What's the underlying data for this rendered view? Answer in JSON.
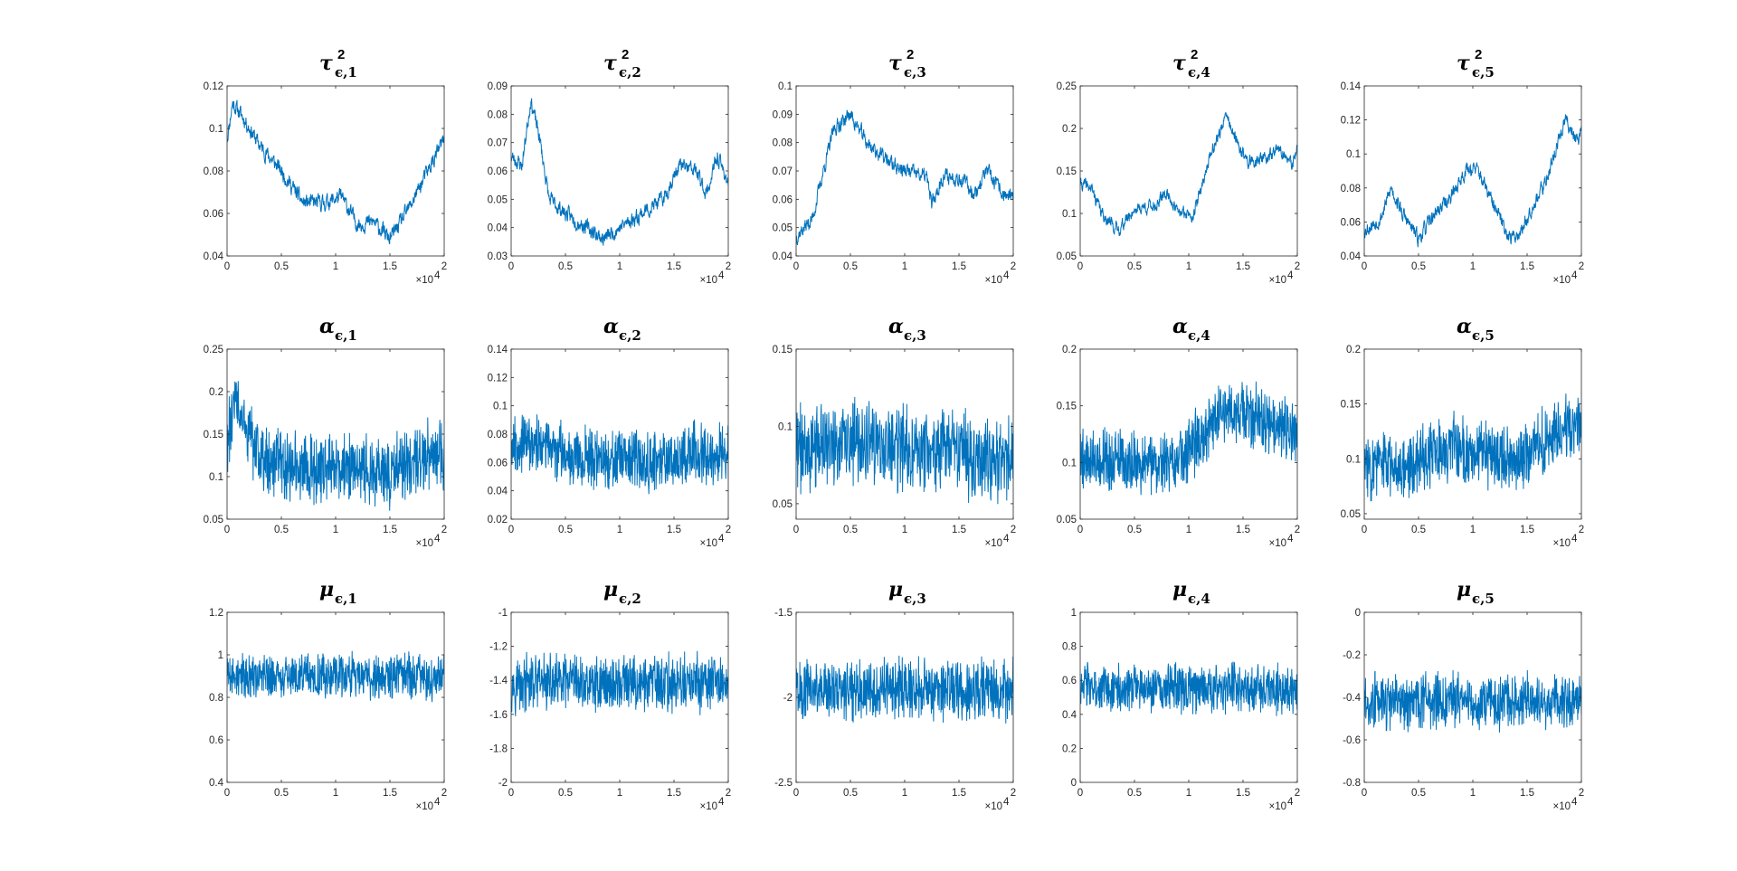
{
  "colors": {
    "trace": "#0072BD",
    "axis": "#262626",
    "background": "#ffffff"
  },
  "chart_data": [
    {
      "type": "line",
      "title": "τ²ϵ,1",
      "title_symbol": "τ",
      "title_subscript": "ϵ,1",
      "title_superscript": "2",
      "xlim": [
        0,
        20000
      ],
      "ylim": [
        0.04,
        0.12
      ],
      "xtick_labels": [
        "0",
        "0.5",
        "1",
        "1.5",
        "2"
      ],
      "x_exponent_label": "×10",
      "x_exponent": "4",
      "ytick_values": [
        0.04,
        0.06,
        0.08,
        0.1,
        0.12
      ],
      "ytick_labels": [
        "0.04",
        "0.06",
        "0.08",
        "0.1",
        "0.12"
      ],
      "knots": [
        [
          0,
          0.095
        ],
        [
          500,
          0.112
        ],
        [
          1500,
          0.105
        ],
        [
          3000,
          0.092
        ],
        [
          5000,
          0.08
        ],
        [
          7000,
          0.065
        ],
        [
          9000,
          0.065
        ],
        [
          10500,
          0.068
        ],
        [
          12000,
          0.055
        ],
        [
          13500,
          0.056
        ],
        [
          15000,
          0.048
        ],
        [
          16500,
          0.06
        ],
        [
          18000,
          0.075
        ],
        [
          20000,
          0.095
        ]
      ],
      "noise": 0.003,
      "smooth": true,
      "seed": 11
    },
    {
      "type": "line",
      "title": "τ²ϵ,2",
      "title_symbol": "τ",
      "title_subscript": "ϵ,2",
      "title_superscript": "2",
      "xlim": [
        0,
        20000
      ],
      "ylim": [
        0.03,
        0.09
      ],
      "xtick_labels": [
        "0",
        "0.5",
        "1",
        "1.5",
        "2"
      ],
      "x_exponent_label": "×10",
      "x_exponent": "4",
      "ytick_values": [
        0.03,
        0.04,
        0.05,
        0.06,
        0.07,
        0.08,
        0.09
      ],
      "ytick_labels": [
        "0.03",
        "0.04",
        "0.05",
        "0.06",
        "0.07",
        "0.08",
        "0.09"
      ],
      "knots": [
        [
          0,
          0.065
        ],
        [
          1000,
          0.062
        ],
        [
          1800,
          0.085
        ],
        [
          2600,
          0.072
        ],
        [
          3500,
          0.05
        ],
        [
          5000,
          0.045
        ],
        [
          7000,
          0.04
        ],
        [
          8500,
          0.036
        ],
        [
          10000,
          0.04
        ],
        [
          12000,
          0.045
        ],
        [
          14000,
          0.05
        ],
        [
          15500,
          0.062
        ],
        [
          17000,
          0.06
        ],
        [
          18000,
          0.052
        ],
        [
          19000,
          0.065
        ],
        [
          20000,
          0.056
        ]
      ],
      "noise": 0.0022,
      "smooth": true,
      "seed": 23
    },
    {
      "type": "line",
      "title": "τ²ϵ,3",
      "title_symbol": "τ",
      "title_subscript": "ϵ,3",
      "title_superscript": "2",
      "xlim": [
        0,
        20000
      ],
      "ylim": [
        0.04,
        0.1
      ],
      "xtick_labels": [
        "0",
        "0.5",
        "1",
        "1.5",
        "2"
      ],
      "x_exponent_label": "×10",
      "x_exponent": "4",
      "ytick_values": [
        0.04,
        0.05,
        0.06,
        0.07,
        0.08,
        0.09,
        0.1
      ],
      "ytick_labels": [
        "0.04",
        "0.05",
        "0.06",
        "0.07",
        "0.08",
        "0.09",
        "0.1"
      ],
      "knots": [
        [
          0,
          0.047
        ],
        [
          1500,
          0.053
        ],
        [
          2500,
          0.07
        ],
        [
          3500,
          0.085
        ],
        [
          5000,
          0.09
        ],
        [
          6500,
          0.08
        ],
        [
          8000,
          0.075
        ],
        [
          9000,
          0.072
        ],
        [
          10000,
          0.07
        ],
        [
          12000,
          0.068
        ],
        [
          12500,
          0.058
        ],
        [
          13500,
          0.068
        ],
        [
          15000,
          0.068
        ],
        [
          16500,
          0.062
        ],
        [
          17500,
          0.07
        ],
        [
          19000,
          0.062
        ],
        [
          20000,
          0.06
        ]
      ],
      "noise": 0.0022,
      "smooth": true,
      "seed": 37
    },
    {
      "type": "line",
      "title": "τ²ϵ,4",
      "title_symbol": "τ",
      "title_subscript": "ϵ,4",
      "title_superscript": "2",
      "xlim": [
        0,
        20000
      ],
      "ylim": [
        0.05,
        0.25
      ],
      "xtick_labels": [
        "0",
        "0.5",
        "1",
        "1.5",
        "2"
      ],
      "x_exponent_label": "×10",
      "x_exponent": "4",
      "ytick_values": [
        0.05,
        0.1,
        0.15,
        0.2,
        0.25
      ],
      "ytick_labels": [
        "0.05",
        "0.1",
        "0.15",
        "0.2",
        "0.25"
      ],
      "knots": [
        [
          0,
          0.135
        ],
        [
          1000,
          0.13
        ],
        [
          2000,
          0.1
        ],
        [
          3500,
          0.08
        ],
        [
          5000,
          0.105
        ],
        [
          7000,
          0.11
        ],
        [
          8000,
          0.125
        ],
        [
          9000,
          0.1
        ],
        [
          10500,
          0.1
        ],
        [
          12000,
          0.17
        ],
        [
          13500,
          0.215
        ],
        [
          14500,
          0.18
        ],
        [
          15500,
          0.16
        ],
        [
          17000,
          0.165
        ],
        [
          18500,
          0.175
        ],
        [
          19500,
          0.155
        ],
        [
          20000,
          0.175
        ]
      ],
      "noise": 0.006,
      "smooth": true,
      "seed": 41
    },
    {
      "type": "line",
      "title": "τ²ϵ,5",
      "title_symbol": "τ",
      "title_subscript": "ϵ,5",
      "title_superscript": "2",
      "xlim": [
        0,
        20000
      ],
      "ylim": [
        0.04,
        0.14
      ],
      "xtick_labels": [
        "0",
        "0.5",
        "1",
        "1.5",
        "2"
      ],
      "x_exponent_label": "×10",
      "x_exponent": "4",
      "ytick_values": [
        0.04,
        0.06,
        0.08,
        0.1,
        0.12,
        0.14
      ],
      "ytick_labels": [
        "0.04",
        "0.06",
        "0.08",
        "0.1",
        "0.12",
        "0.14"
      ],
      "knots": [
        [
          0,
          0.055
        ],
        [
          1500,
          0.062
        ],
        [
          2500,
          0.08
        ],
        [
          3500,
          0.065
        ],
        [
          5000,
          0.05
        ],
        [
          6500,
          0.065
        ],
        [
          8000,
          0.075
        ],
        [
          9500,
          0.092
        ],
        [
          10500,
          0.09
        ],
        [
          12000,
          0.068
        ],
        [
          13500,
          0.05
        ],
        [
          14500,
          0.055
        ],
        [
          15500,
          0.07
        ],
        [
          16500,
          0.08
        ],
        [
          17500,
          0.1
        ],
        [
          18500,
          0.12
        ],
        [
          19500,
          0.11
        ],
        [
          20000,
          0.112
        ]
      ],
      "noise": 0.0035,
      "smooth": true,
      "seed": 53
    },
    {
      "type": "line",
      "title": "αϵ,1",
      "title_symbol": "α",
      "title_subscript": "ϵ,1",
      "title_superscript": "",
      "xlim": [
        0,
        20000
      ],
      "ylim": [
        0.05,
        0.25
      ],
      "xtick_labels": [
        "0",
        "0.5",
        "1",
        "1.5",
        "2"
      ],
      "x_exponent_label": "×10",
      "x_exponent": "4",
      "ytick_values": [
        0.05,
        0.1,
        0.15,
        0.2,
        0.25
      ],
      "ytick_labels": [
        "0.05",
        "0.1",
        "0.15",
        "0.2",
        "0.25"
      ],
      "knots": [
        [
          0,
          0.14
        ],
        [
          800,
          0.19
        ],
        [
          1500,
          0.16
        ],
        [
          3000,
          0.12
        ],
        [
          6000,
          0.11
        ],
        [
          9000,
          0.11
        ],
        [
          12000,
          0.11
        ],
        [
          15000,
          0.105
        ],
        [
          18000,
          0.12
        ],
        [
          20000,
          0.13
        ]
      ],
      "noise": 0.032,
      "smooth": false,
      "seed": 61
    },
    {
      "type": "line",
      "title": "αϵ,2",
      "title_symbol": "α",
      "title_subscript": "ϵ,2",
      "title_superscript": "",
      "xlim": [
        0,
        20000
      ],
      "ylim": [
        0.02,
        0.14
      ],
      "xtick_labels": [
        "0",
        "0.5",
        "1",
        "1.5",
        "2"
      ],
      "x_exponent_label": "×10",
      "x_exponent": "4",
      "ytick_values": [
        0.02,
        0.04,
        0.06,
        0.08,
        0.1,
        0.12,
        0.14
      ],
      "ytick_labels": [
        "0.02",
        "0.04",
        "0.06",
        "0.08",
        "0.1",
        "0.12",
        "0.14"
      ],
      "knots": [
        [
          0,
          0.075
        ],
        [
          3000,
          0.072
        ],
        [
          6000,
          0.065
        ],
        [
          10000,
          0.06
        ],
        [
          14000,
          0.062
        ],
        [
          17000,
          0.068
        ],
        [
          20000,
          0.065
        ]
      ],
      "noise": 0.016,
      "smooth": false,
      "seed": 67
    },
    {
      "type": "line",
      "title": "αϵ,3",
      "title_symbol": "α",
      "title_subscript": "ϵ,3",
      "title_superscript": "",
      "xlim": [
        0,
        20000
      ],
      "ylim": [
        0.04,
        0.15
      ],
      "xtick_labels": [
        "0",
        "0.5",
        "1",
        "1.5",
        "2"
      ],
      "x_exponent_label": "×10",
      "x_exponent": "4",
      "ytick_values": [
        0.05,
        0.1,
        0.15
      ],
      "ytick_labels": [
        "0.05",
        "0.1",
        "0.15"
      ],
      "knots": [
        [
          0,
          0.085
        ],
        [
          4000,
          0.09
        ],
        [
          8000,
          0.085
        ],
        [
          12000,
          0.085
        ],
        [
          16000,
          0.082
        ],
        [
          20000,
          0.08
        ]
      ],
      "noise": 0.022,
      "smooth": false,
      "seed": 71
    },
    {
      "type": "line",
      "title": "αϵ,4",
      "title_symbol": "α",
      "title_subscript": "ϵ,4",
      "title_superscript": "",
      "xlim": [
        0,
        20000
      ],
      "ylim": [
        0.05,
        0.2
      ],
      "xtick_labels": [
        "0",
        "0.5",
        "1",
        "1.5",
        "2"
      ],
      "x_exponent_label": "×10",
      "x_exponent": "4",
      "ytick_values": [
        0.05,
        0.1,
        0.15,
        0.2
      ],
      "ytick_labels": [
        "0.05",
        "0.1",
        "0.15",
        "0.2"
      ],
      "knots": [
        [
          0,
          0.105
        ],
        [
          4000,
          0.1
        ],
        [
          9000,
          0.1
        ],
        [
          11000,
          0.12
        ],
        [
          13000,
          0.145
        ],
        [
          16000,
          0.14
        ],
        [
          18000,
          0.13
        ],
        [
          20000,
          0.125
        ]
      ],
      "noise": 0.022,
      "smooth": false,
      "seed": 79
    },
    {
      "type": "line",
      "title": "αϵ,5",
      "title_symbol": "α",
      "title_subscript": "ϵ,5",
      "title_superscript": "",
      "xlim": [
        0,
        20000
      ],
      "ylim": [
        0.045,
        0.2
      ],
      "xtick_labels": [
        "0",
        "0.5",
        "1",
        "1.5",
        "2"
      ],
      "x_exponent_label": "×10",
      "x_exponent": "4",
      "ytick_values": [
        0.05,
        0.1,
        0.15,
        0.2
      ],
      "ytick_labels": [
        "0.05",
        "0.1",
        "0.15",
        "0.2"
      ],
      "knots": [
        [
          0,
          0.095
        ],
        [
          4000,
          0.095
        ],
        [
          8000,
          0.11
        ],
        [
          12000,
          0.1
        ],
        [
          15000,
          0.1
        ],
        [
          18000,
          0.13
        ],
        [
          20000,
          0.13
        ]
      ],
      "noise": 0.024,
      "smooth": false,
      "seed": 83
    },
    {
      "type": "line",
      "title": "μϵ,1",
      "title_symbol": "μ",
      "title_subscript": "ϵ,1",
      "title_superscript": "",
      "xlim": [
        0,
        20000
      ],
      "ylim": [
        0.4,
        1.2
      ],
      "xtick_labels": [
        "0",
        "0.5",
        "1",
        "1.5",
        "2"
      ],
      "x_exponent_label": "×10",
      "x_exponent": "4",
      "ytick_values": [
        0.4,
        0.6,
        0.8,
        1,
        1.2
      ],
      "ytick_labels": [
        "0.4",
        "0.6",
        "0.8",
        "1",
        "1.2"
      ],
      "knots": [
        [
          0,
          0.9
        ],
        [
          20000,
          0.9
        ]
      ],
      "noise": 0.085,
      "smooth": false,
      "seed": 89
    },
    {
      "type": "line",
      "title": "μϵ,2",
      "title_symbol": "μ",
      "title_subscript": "ϵ,2",
      "title_superscript": "",
      "xlim": [
        0,
        20000
      ],
      "ylim": [
        -2,
        -1
      ],
      "xtick_labels": [
        "0",
        "0.5",
        "1",
        "1.5",
        "2"
      ],
      "x_exponent_label": "×10",
      "x_exponent": "4",
      "ytick_values": [
        -2,
        -1.8,
        -1.6,
        -1.4,
        -1.2,
        -1
      ],
      "ytick_labels": [
        "-2",
        "-1.8",
        "-1.6",
        "-1.4",
        "-1.2",
        "-1"
      ],
      "knots": [
        [
          0,
          -1.42
        ],
        [
          20000,
          -1.42
        ]
      ],
      "noise": 0.13,
      "smooth": false,
      "seed": 97
    },
    {
      "type": "line",
      "title": "μϵ,3",
      "title_symbol": "μ",
      "title_subscript": "ϵ,3",
      "title_superscript": "",
      "xlim": [
        0,
        20000
      ],
      "ylim": [
        -2.5,
        -1.5
      ],
      "xtick_labels": [
        "0",
        "0.5",
        "1",
        "1.5",
        "2"
      ],
      "x_exponent_label": "×10",
      "x_exponent": "4",
      "ytick_values": [
        -2.5,
        -2,
        -1.5
      ],
      "ytick_labels": [
        "-2.5",
        "-2",
        "-1.5"
      ],
      "knots": [
        [
          0,
          -1.95
        ],
        [
          20000,
          -1.95
        ]
      ],
      "noise": 0.14,
      "smooth": false,
      "seed": 101
    },
    {
      "type": "line",
      "title": "μϵ,4",
      "title_symbol": "μ",
      "title_subscript": "ϵ,4",
      "title_superscript": "",
      "xlim": [
        0,
        20000
      ],
      "ylim": [
        0,
        1
      ],
      "xtick_labels": [
        "0",
        "0.5",
        "1",
        "1.5",
        "2"
      ],
      "x_exponent_label": "×10",
      "x_exponent": "4",
      "ytick_values": [
        0,
        0.2,
        0.4,
        0.6,
        0.8,
        1
      ],
      "ytick_labels": [
        "0",
        "0.2",
        "0.4",
        "0.6",
        "0.8",
        "1"
      ],
      "knots": [
        [
          0,
          0.55
        ],
        [
          20000,
          0.55
        ]
      ],
      "noise": 0.11,
      "smooth": false,
      "seed": 103
    },
    {
      "type": "line",
      "title": "μϵ,5",
      "title_symbol": "μ",
      "title_subscript": "ϵ,5",
      "title_superscript": "",
      "xlim": [
        0,
        20000
      ],
      "ylim": [
        -0.8,
        0
      ],
      "xtick_labels": [
        "0",
        "0.5",
        "1",
        "1.5",
        "2"
      ],
      "x_exponent_label": "×10",
      "x_exponent": "4",
      "ytick_values": [
        -0.8,
        -0.6,
        -0.4,
        -0.2,
        0
      ],
      "ytick_labels": [
        "-0.8",
        "-0.6",
        "-0.4",
        "-0.2",
        "0"
      ],
      "knots": [
        [
          0,
          -0.42
        ],
        [
          20000,
          -0.42
        ]
      ],
      "noise": 0.1,
      "smooth": false,
      "seed": 107
    }
  ]
}
